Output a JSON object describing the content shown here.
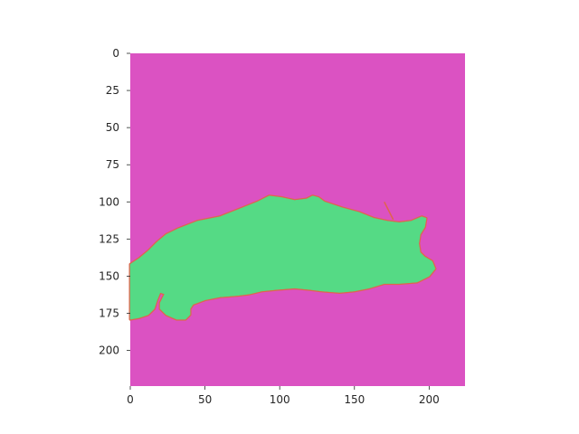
{
  "chart_data": {
    "type": "heatmap",
    "title": "",
    "xlabel": "",
    "ylabel": "",
    "xlim": [
      0,
      224
    ],
    "ylim": [
      224,
      0
    ],
    "x_ticks": [
      "0",
      "50",
      "100",
      "150",
      "200"
    ],
    "y_ticks": [
      "0",
      "25",
      "50",
      "75",
      "100",
      "125",
      "150",
      "175",
      "200"
    ],
    "grid": false,
    "legend": "none",
    "colors": {
      "background_class": "#DB52C2",
      "object_class": "#55DA85",
      "boundary_class": "#E0644D"
    },
    "mask_region": {
      "label": "object_class",
      "outline_data_coords": [
        [
          0,
          142
        ],
        [
          6,
          138
        ],
        [
          12,
          133
        ],
        [
          18,
          127
        ],
        [
          24,
          122
        ],
        [
          32,
          118
        ],
        [
          45,
          113
        ],
        [
          60,
          110
        ],
        [
          75,
          104
        ],
        [
          85,
          100
        ],
        [
          93,
          96
        ],
        [
          101,
          97
        ],
        [
          110,
          99
        ],
        [
          118,
          98
        ],
        [
          122,
          96
        ],
        [
          126,
          97
        ],
        [
          130,
          100
        ],
        [
          142,
          104
        ],
        [
          153,
          107
        ],
        [
          163,
          111
        ],
        [
          172,
          113
        ],
        [
          180,
          114
        ],
        [
          188,
          113
        ],
        [
          195,
          110
        ],
        [
          198,
          111
        ],
        [
          197,
          117
        ],
        [
          194,
          122
        ],
        [
          193,
          128
        ],
        [
          194,
          134
        ],
        [
          197,
          137
        ],
        [
          202,
          140
        ],
        [
          204,
          145
        ],
        [
          200,
          150
        ],
        [
          192,
          154
        ],
        [
          180,
          155
        ],
        [
          170,
          155
        ],
        [
          160,
          158
        ],
        [
          150,
          160
        ],
        [
          140,
          161
        ],
        [
          128,
          160
        ],
        [
          120,
          159
        ],
        [
          110,
          158
        ],
        [
          98,
          159
        ],
        [
          88,
          160
        ],
        [
          80,
          162
        ],
        [
          72,
          163
        ],
        [
          60,
          164
        ],
        [
          50,
          166
        ],
        [
          42,
          169
        ],
        [
          40,
          172
        ],
        [
          40,
          176
        ],
        [
          37,
          179
        ],
        [
          31,
          179
        ],
        [
          24,
          176
        ],
        [
          20,
          172
        ],
        [
          20,
          168
        ],
        [
          23,
          162
        ],
        [
          20,
          161
        ],
        [
          18,
          166
        ],
        [
          16,
          172
        ],
        [
          12,
          176
        ],
        [
          6,
          178
        ],
        [
          0,
          179
        ]
      ],
      "thin_boundary_line": [
        [
          170,
          100
        ],
        [
          176,
          112
        ]
      ]
    }
  }
}
